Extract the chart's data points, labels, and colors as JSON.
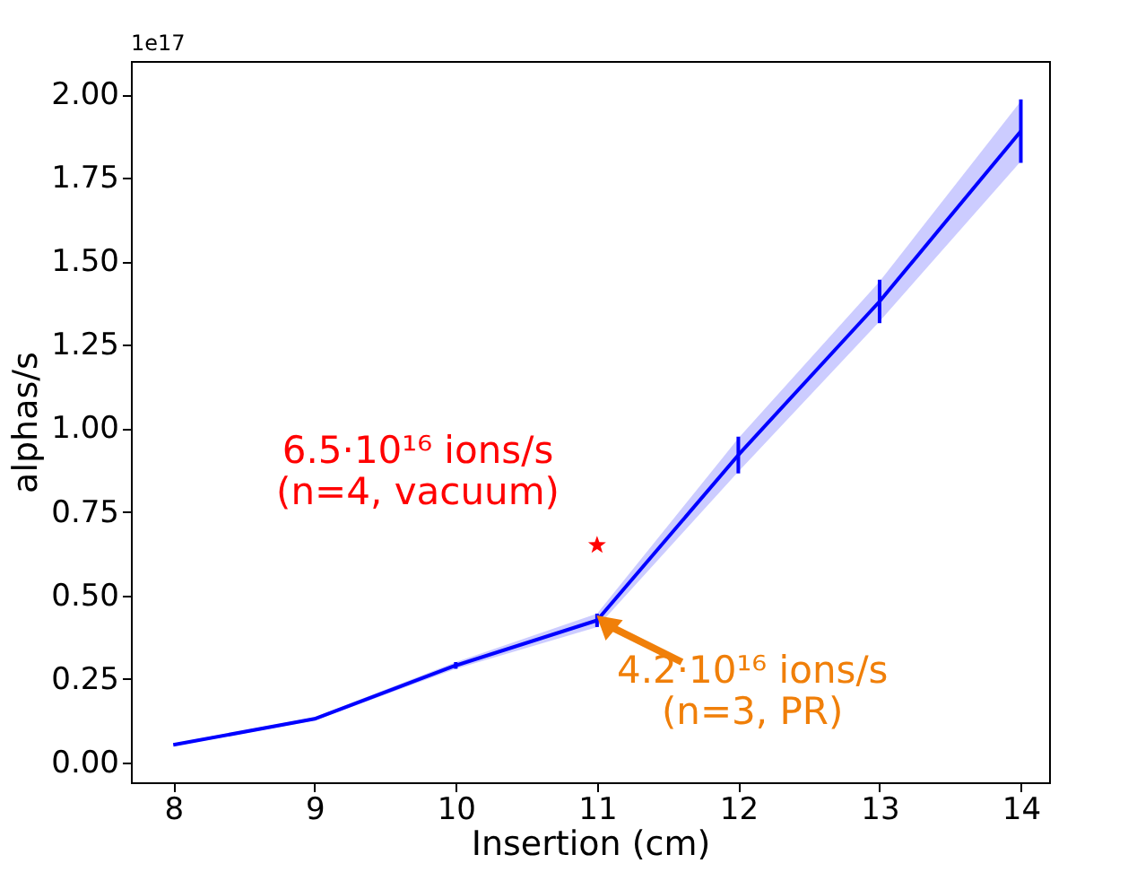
{
  "chart_data": {
    "type": "line",
    "xlabel": "Insertion (cm)",
    "ylabel": "alphas/s",
    "x": [
      8,
      9,
      10,
      11,
      12,
      13,
      14
    ],
    "xlim": [
      7.7,
      14.2
    ],
    "xticks": [
      8,
      9,
      10,
      11,
      12,
      13,
      14
    ],
    "ylim": [
      -0.06,
      2.1
    ],
    "yticks": [
      {
        "value": 0,
        "label": "0.00"
      },
      {
        "value": 0.25,
        "label": "0.25"
      },
      {
        "value": 0.5,
        "label": "0.50"
      },
      {
        "value": 0.75,
        "label": "0.75"
      },
      {
        "value": 1,
        "label": "1.00"
      },
      {
        "value": 1.25,
        "label": "1.25"
      },
      {
        "value": 1.5,
        "label": "1.50"
      },
      {
        "value": 1.75,
        "label": "1.75"
      },
      {
        "value": 2,
        "label": "2.00"
      }
    ],
    "grid": false,
    "legend": false,
    "marker": "none",
    "line_style": "solid",
    "series": [
      {
        "color": "#0000ff",
        "values": [
          0.052,
          0.13,
          0.29,
          0.425,
          0.92,
          1.38,
          1.89
        ],
        "errors": [
          null,
          null,
          0.01,
          0.02,
          0.055,
          0.065,
          0.095
        ],
        "lower": [
          0.048,
          0.125,
          0.28,
          0.405,
          0.87,
          1.32,
          1.8
        ],
        "upper": [
          0.056,
          0.135,
          0.3,
          0.445,
          0.97,
          1.44,
          1.98
        ]
      },
      {
        "type": "scatter",
        "marker": "star",
        "color": "#ff0000",
        "x": [
          11
        ],
        "values": [
          0.65
        ]
      }
    ],
    "annotations": [
      "1e17",
      "6.5·10¹⁶ ions/s\n(n=4, vacuum)",
      {
        "text": "4.2·10¹⁶ ions/s\n(n=3, PR)",
        "x": 11,
        "y": 0.42
      }
    ]
  }
}
